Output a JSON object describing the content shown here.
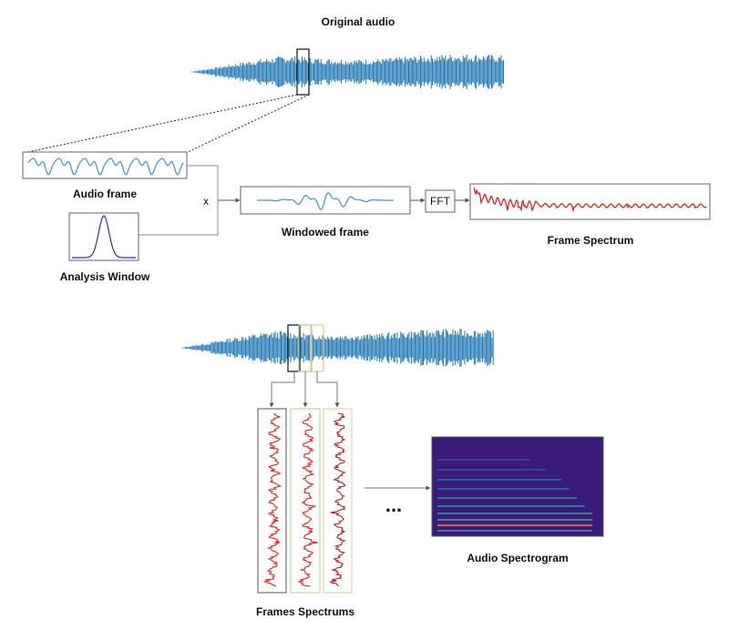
{
  "labels": {
    "original_audio": "Original audio",
    "audio_frame": "Audio frame",
    "analysis_window": "Analysis Window",
    "multiply": "x",
    "windowed_frame": "Windowed frame",
    "fft": "FFT",
    "frame_spectrum": "Frame Spectrum",
    "frames_spectrums": "Frames Spectrums",
    "ellipsis": "...",
    "audio_spectrogram": "Audio Spectrogram"
  },
  "colors": {
    "waveform": "#1f77b4",
    "frame_signal": "#4f97c9",
    "window_curve": "#2030d0",
    "spectrum": "#ee1111",
    "frame_box_1": "#222222",
    "frame_box_2": "#9fd98a",
    "frame_box_3": "#f2c094",
    "spectrogram_bg": "#3a1a7a"
  }
}
